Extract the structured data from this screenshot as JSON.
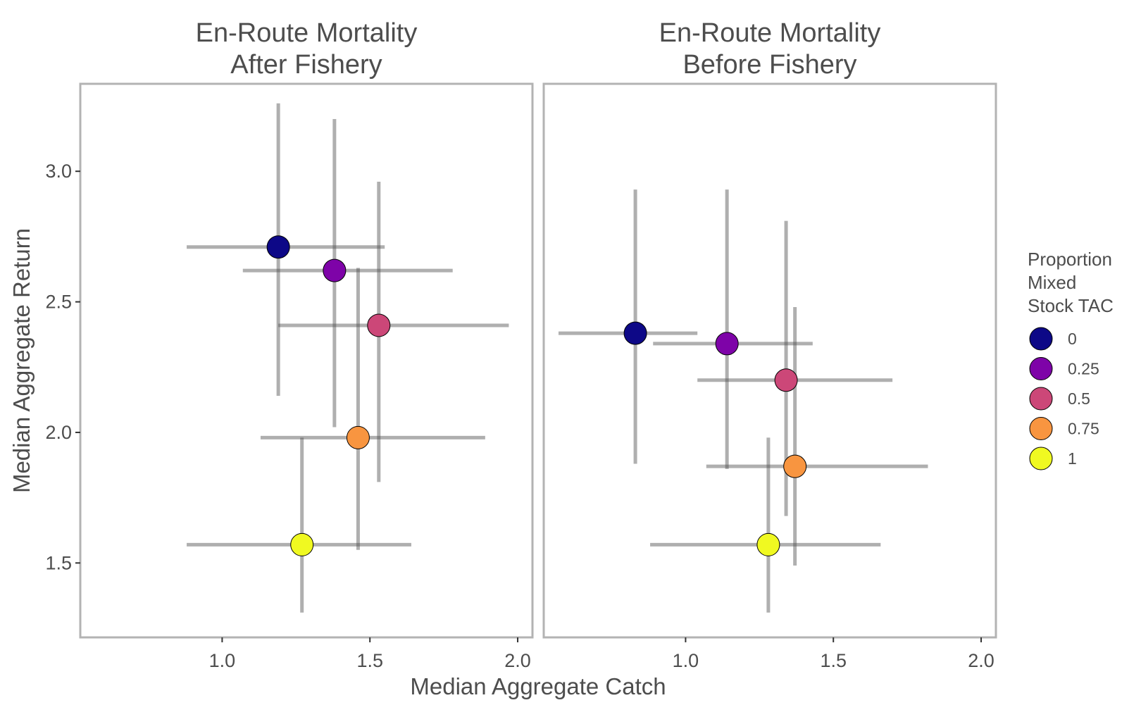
{
  "chart_data": {
    "type": "scatter",
    "xlabel": "Median Aggregate Catch",
    "ylabel": "Median Aggregate Return",
    "xlim": [
      0.52,
      2.05
    ],
    "ylim": [
      1.215,
      3.335
    ],
    "x_ticks": [
      "1.0",
      "1.5",
      "2.0"
    ],
    "y_ticks": [
      "1.5",
      "2.0",
      "2.5",
      "3.0"
    ],
    "x_tick_values": [
      1.0,
      1.5,
      2.0
    ],
    "y_tick_values": [
      1.5,
      2.0,
      2.5,
      3.0
    ],
    "grid": false,
    "legend": {
      "title_lines": [
        "Proportion",
        "Mixed",
        "Stock TAC"
      ],
      "placement": "right",
      "entries": [
        {
          "label": "0",
          "color": "#0d0887"
        },
        {
          "label": "0.25",
          "color": "#7e03a8"
        },
        {
          "label": "0.5",
          "color": "#cc4778"
        },
        {
          "label": "0.75",
          "color": "#f89540"
        },
        {
          "label": "1",
          "color": "#f0f921"
        }
      ]
    },
    "panels": [
      {
        "title_lines": [
          "En-Route Mortality",
          "After Fishery"
        ],
        "points": [
          {
            "group": "0",
            "x": 1.19,
            "y": 2.71,
            "xmin": 0.88,
            "xmax": 1.55,
            "ymin": 2.14,
            "ymax": 3.26
          },
          {
            "group": "0.25",
            "x": 1.38,
            "y": 2.62,
            "xmin": 1.07,
            "xmax": 1.78,
            "ymin": 2.02,
            "ymax": 3.2
          },
          {
            "group": "0.5",
            "x": 1.53,
            "y": 2.41,
            "xmin": 1.19,
            "xmax": 1.97,
            "ymin": 1.81,
            "ymax": 2.96
          },
          {
            "group": "0.75",
            "x": 1.46,
            "y": 1.98,
            "xmin": 1.13,
            "xmax": 1.89,
            "ymin": 1.55,
            "ymax": 2.63
          },
          {
            "group": "1",
            "x": 1.27,
            "y": 1.57,
            "xmin": 0.88,
            "xmax": 1.64,
            "ymin": 1.31,
            "ymax": 1.98
          }
        ]
      },
      {
        "title_lines": [
          "En-Route Mortality",
          "Before Fishery"
        ],
        "points": [
          {
            "group": "0",
            "x": 0.83,
            "y": 2.38,
            "xmin": 0.57,
            "xmax": 1.04,
            "ymin": 1.88,
            "ymax": 2.93
          },
          {
            "group": "0.25",
            "x": 1.14,
            "y": 2.34,
            "xmin": 0.89,
            "xmax": 1.43,
            "ymin": 1.86,
            "ymax": 2.93
          },
          {
            "group": "0.5",
            "x": 1.34,
            "y": 2.2,
            "xmin": 1.04,
            "xmax": 1.7,
            "ymin": 1.68,
            "ymax": 2.81
          },
          {
            "group": "0.75",
            "x": 1.37,
            "y": 1.87,
            "xmin": 1.07,
            "xmax": 1.82,
            "ymin": 1.49,
            "ymax": 2.48
          },
          {
            "group": "1",
            "x": 1.28,
            "y": 1.57,
            "xmin": 0.88,
            "xmax": 1.66,
            "ymin": 1.31,
            "ymax": 1.98
          }
        ]
      }
    ]
  }
}
